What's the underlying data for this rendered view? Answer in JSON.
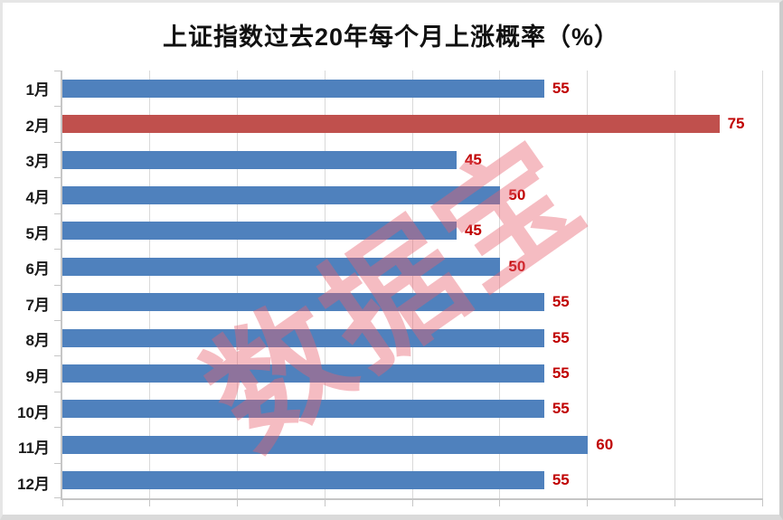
{
  "title": "上证指数过去20年每个月上涨概率（%）",
  "watermark": {
    "text": "数据宝"
  },
  "colors": {
    "bar_default": "#4F81BD",
    "bar_highlight": "#C0504D",
    "value_label": "#C00000",
    "gridline": "#D9D9D9",
    "axis_tick": "#C6C6C6",
    "watermark": "rgba(232, 95, 110, 0.42)",
    "title_text": "#111111",
    "category_text": "#1A1A1A"
  },
  "chart_data": {
    "type": "bar",
    "orientation": "horizontal",
    "title": "上证指数过去20年每个月上涨概率（%）",
    "categories": [
      "1月",
      "2月",
      "3月",
      "4月",
      "5月",
      "6月",
      "7月",
      "8月",
      "9月",
      "10月",
      "11月",
      "12月"
    ],
    "values": [
      55,
      75,
      45,
      50,
      45,
      50,
      55,
      55,
      55,
      55,
      60,
      55
    ],
    "highlight_index": 1,
    "highlight_category": "2月",
    "xlabel": "",
    "ylabel": "",
    "xlim": [
      0,
      80
    ],
    "gridline_interval": 10,
    "grid": "vertical-on",
    "value_labels_shown": true,
    "legend": "none"
  }
}
